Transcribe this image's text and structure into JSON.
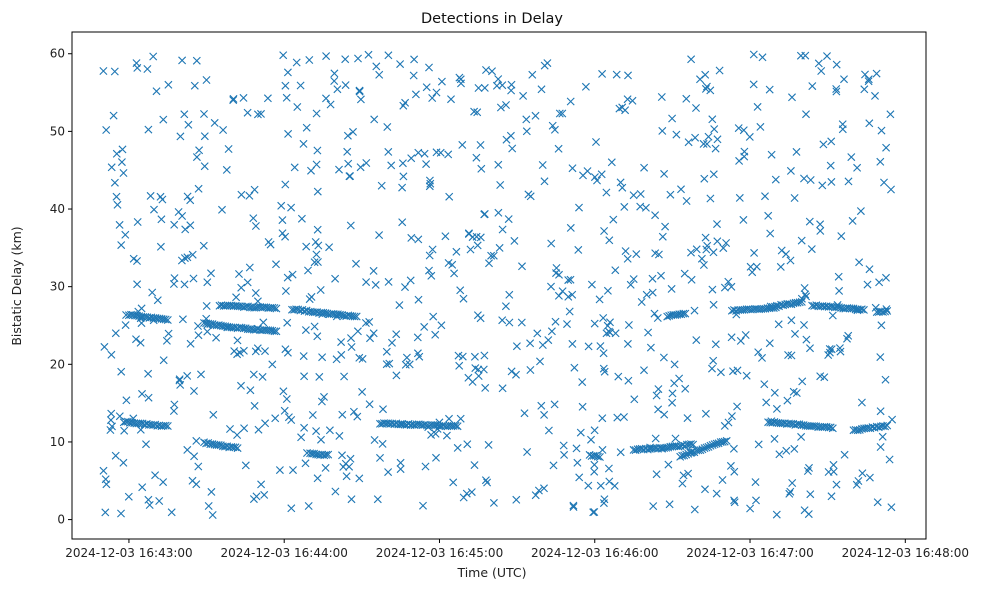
{
  "chart_data": {
    "type": "scatter",
    "title": "Detections in Delay",
    "xlabel": "Time (UTC)",
    "ylabel": "Bistatic Delay (km)",
    "marker": "x",
    "color": "#1f77b4",
    "grid": false,
    "legend": "none",
    "x_start": "2024-12-03 16:42:50",
    "x_end": "2024-12-03 16:47:55",
    "xlim": [
      "2024-12-03 16:42:38",
      "2024-12-03 16:48:08"
    ],
    "ylim": [
      -2.5,
      62.8
    ],
    "xticks": [
      "2024-12-03 16:43:00",
      "2024-12-03 16:44:00",
      "2024-12-03 16:45:00",
      "2024-12-03 16:46:00",
      "2024-12-03 16:47:00",
      "2024-12-03 16:48:00"
    ],
    "yticks": [
      "0",
      "10",
      "20",
      "30",
      "40",
      "50",
      "60"
    ],
    "tracks": [
      {
        "start": "2024-12-03 16:42:58",
        "end": "2024-12-03 16:43:15",
        "delay_start": 12.6,
        "delay_end": 12.0
      },
      {
        "start": "2024-12-03 16:43:00",
        "end": "2024-12-03 16:43:15",
        "delay_start": 26.4,
        "delay_end": 25.7
      },
      {
        "start": "2024-12-03 16:43:29",
        "end": "2024-12-03 16:43:38",
        "delay_start": 25.3,
        "delay_end": 24.8
      },
      {
        "start": "2024-12-03 16:43:35",
        "end": "2024-12-03 16:43:57",
        "delay_start": 27.6,
        "delay_end": 27.2
      },
      {
        "start": "2024-12-03 16:43:38",
        "end": "2024-12-03 16:43:57",
        "delay_start": 24.8,
        "delay_end": 24.3
      },
      {
        "start": "2024-12-03 16:43:29",
        "end": "2024-12-03 16:43:42",
        "delay_start": 9.9,
        "delay_end": 9.2
      },
      {
        "start": "2024-12-03 16:44:03",
        "end": "2024-12-03 16:44:28",
        "delay_start": 27.1,
        "delay_end": 26.1
      },
      {
        "start": "2024-12-03 16:44:10",
        "end": "2024-12-03 16:44:17",
        "delay_start": 8.5,
        "delay_end": 8.3
      },
      {
        "start": "2024-12-03 16:44:37",
        "end": "2024-12-03 16:45:07",
        "delay_start": 12.4,
        "delay_end": 12.0
      },
      {
        "start": "2024-12-03 16:45:58",
        "end": "2024-12-03 16:46:02",
        "delay_start": 8.3,
        "delay_end": 8.1
      },
      {
        "start": "2024-12-03 16:46:15",
        "end": "2024-12-03 16:46:26",
        "delay_start": 9.0,
        "delay_end": 9.2
      },
      {
        "start": "2024-12-03 16:46:26",
        "end": "2024-12-03 16:46:38",
        "delay_start": 9.2,
        "delay_end": 9.7
      },
      {
        "start": "2024-12-03 16:46:33",
        "end": "2024-12-03 16:46:51",
        "delay_start": 8.1,
        "delay_end": 10.2
      },
      {
        "start": "2024-12-03 16:46:28",
        "end": "2024-12-03 16:46:35",
        "delay_start": 26.2,
        "delay_end": 26.5
      },
      {
        "start": "2024-12-03 16:46:53",
        "end": "2024-12-03 16:47:10",
        "delay_start": 26.9,
        "delay_end": 27.3
      },
      {
        "start": "2024-12-03 16:47:08",
        "end": "2024-12-03 16:47:20",
        "delay_start": 27.4,
        "delay_end": 28.0
      },
      {
        "start": "2024-12-03 16:47:07",
        "end": "2024-12-03 16:47:32",
        "delay_start": 12.6,
        "delay_end": 11.8
      },
      {
        "start": "2024-12-03 16:47:24",
        "end": "2024-12-03 16:47:44",
        "delay_start": 27.6,
        "delay_end": 27.0
      },
      {
        "start": "2024-12-03 16:47:40",
        "end": "2024-12-03 16:47:53",
        "delay_start": 11.5,
        "delay_end": 12.1
      },
      {
        "start": "2024-12-03 16:47:49",
        "end": "2024-12-03 16:47:53",
        "delay_start": 26.8,
        "delay_end": 26.8
      }
    ],
    "clutter_count": 900,
    "clutter_delay_range": [
      0.5,
      60
    ]
  }
}
